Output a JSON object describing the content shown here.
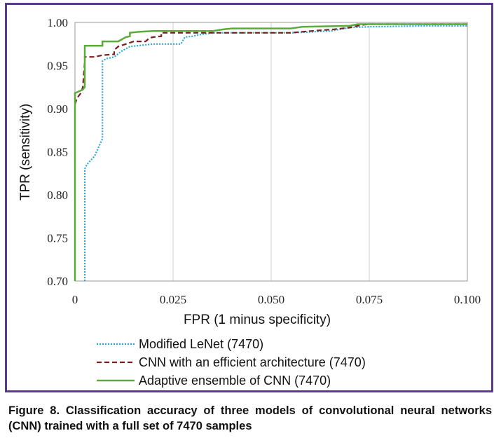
{
  "caption": "Figure 8. Classification accuracy of three models of convolutional neural networks (CNN) trained with a full set of 7470 samples",
  "chart_data": {
    "type": "line",
    "xlabel": "FPR (1 minus specificity)",
    "ylabel": "TPR (sensitivity)",
    "xlim": [
      0,
      0.1
    ],
    "ylim": [
      0.7,
      1.0
    ],
    "x_ticks": [
      0,
      0.025,
      0.05,
      0.075,
      0.1
    ],
    "x_tick_labels": [
      "0",
      "0.025",
      "0.050",
      "0.075",
      "0.100"
    ],
    "y_ticks": [
      0.7,
      0.75,
      0.8,
      0.85,
      0.9,
      0.95,
      1.0
    ],
    "y_tick_labels": [
      "0.70",
      "0.75",
      "0.80",
      "0.85",
      "0.90",
      "0.95",
      "1.00"
    ],
    "grid": "vertical",
    "legend_placement": "bottom",
    "series": [
      {
        "name": "Modified LeNet (7470)",
        "color": "#2aa8d8",
        "dash": "dotted",
        "points": [
          [
            0.0025,
            0.7
          ],
          [
            0.0025,
            0.83
          ],
          [
            0.003,
            0.835
          ],
          [
            0.004,
            0.84
          ],
          [
            0.005,
            0.845
          ],
          [
            0.006,
            0.855
          ],
          [
            0.007,
            0.865
          ],
          [
            0.007,
            0.955
          ],
          [
            0.008,
            0.958
          ],
          [
            0.01,
            0.96
          ],
          [
            0.012,
            0.967
          ],
          [
            0.014,
            0.972
          ],
          [
            0.018,
            0.974
          ],
          [
            0.02,
            0.975
          ],
          [
            0.027,
            0.975
          ],
          [
            0.028,
            0.983
          ],
          [
            0.03,
            0.984
          ],
          [
            0.032,
            0.986
          ],
          [
            0.035,
            0.988
          ],
          [
            0.05,
            0.988
          ],
          [
            0.055,
            0.988
          ],
          [
            0.065,
            0.99
          ],
          [
            0.07,
            0.994
          ],
          [
            0.075,
            0.995
          ],
          [
            0.09,
            0.996
          ],
          [
            0.1,
            0.996
          ]
        ]
      },
      {
        "name": "CNN with an efficient architecture (7470)",
        "color": "#7a1f22",
        "dash": "dashed",
        "points": [
          [
            0,
            0.905
          ],
          [
            0.0005,
            0.912
          ],
          [
            0.001,
            0.915
          ],
          [
            0.0015,
            0.918
          ],
          [
            0.002,
            0.925
          ],
          [
            0.0025,
            0.955
          ],
          [
            0.0025,
            0.96
          ],
          [
            0.005,
            0.96
          ],
          [
            0.007,
            0.962
          ],
          [
            0.01,
            0.963
          ],
          [
            0.01,
            0.968
          ],
          [
            0.011,
            0.972
          ],
          [
            0.013,
            0.975
          ],
          [
            0.015,
            0.978
          ],
          [
            0.018,
            0.978
          ],
          [
            0.019,
            0.982
          ],
          [
            0.02,
            0.983
          ],
          [
            0.022,
            0.984
          ],
          [
            0.022,
            0.988
          ],
          [
            0.025,
            0.988
          ],
          [
            0.03,
            0.988
          ],
          [
            0.04,
            0.988
          ],
          [
            0.05,
            0.988
          ],
          [
            0.055,
            0.988
          ],
          [
            0.06,
            0.99
          ],
          [
            0.066,
            0.992
          ],
          [
            0.07,
            0.994
          ],
          [
            0.073,
            0.997
          ],
          [
            0.075,
            0.998
          ],
          [
            0.1,
            0.998
          ]
        ]
      },
      {
        "name": "Adaptive ensemble of CNN (7470)",
        "color": "#5aab3a",
        "dash": "solid",
        "points": [
          [
            0,
            0.7
          ],
          [
            0,
            0.918
          ],
          [
            0.002,
            0.922
          ],
          [
            0.0025,
            0.925
          ],
          [
            0.0025,
            0.973
          ],
          [
            0.005,
            0.973
          ],
          [
            0.007,
            0.973
          ],
          [
            0.007,
            0.978
          ],
          [
            0.011,
            0.978
          ],
          [
            0.013,
            0.983
          ],
          [
            0.014,
            0.984
          ],
          [
            0.014,
            0.988
          ],
          [
            0.016,
            0.989
          ],
          [
            0.02,
            0.99
          ],
          [
            0.035,
            0.99
          ],
          [
            0.038,
            0.992
          ],
          [
            0.04,
            0.993
          ],
          [
            0.055,
            0.993
          ],
          [
            0.058,
            0.995
          ],
          [
            0.07,
            0.996
          ],
          [
            0.072,
            0.998
          ],
          [
            0.075,
            0.998
          ],
          [
            0.1,
            0.998
          ]
        ]
      }
    ]
  }
}
